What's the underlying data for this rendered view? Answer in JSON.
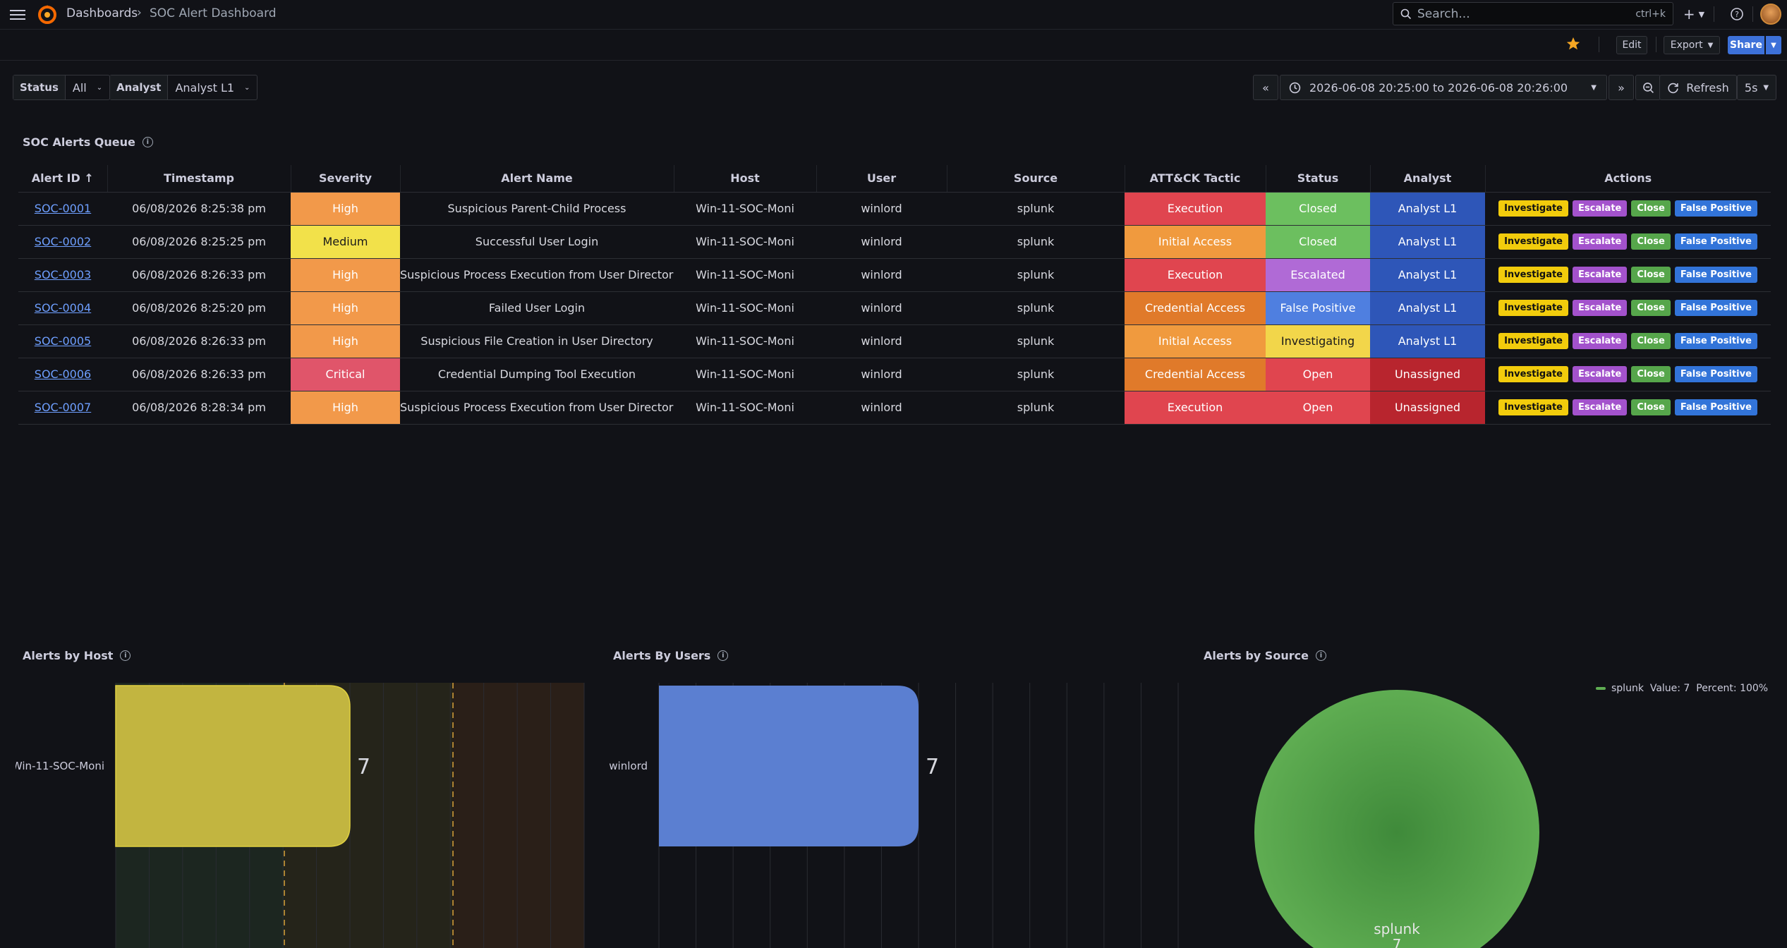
{
  "topbar": {
    "breadcrumb_root": "Dashboards",
    "breadcrumb_sep": "›",
    "breadcrumb_page": "SOC Alert Dashboard",
    "search_placeholder": "Search...",
    "search_shortcut": "ctrl+k",
    "add_label": "+"
  },
  "toolbar": {
    "edit": "Edit",
    "export": "Export",
    "share": "Share"
  },
  "variables": {
    "status_label": "Status",
    "status_value": "All",
    "analyst_label": "Analyst",
    "analyst_value": "Analyst L1"
  },
  "timepicker": {
    "range": "2026-06-08 20:25:00 to 2026-06-08 20:26:00",
    "refresh": "Refresh",
    "interval": "5s"
  },
  "queue": {
    "title": "SOC Alerts Queue",
    "columns": [
      "Alert ID ↑",
      "Timestamp",
      "Severity",
      "Alert Name",
      "Host",
      "User",
      "Source",
      "ATT&CK Tactic",
      "Status",
      "Analyst",
      "Actions"
    ],
    "actions": [
      "Investigate",
      "Escalate",
      "Close",
      "False Positive"
    ],
    "rows": [
      {
        "id": "SOC-0001",
        "ts": "06/08/2026 8:25:38 pm",
        "sev": "High",
        "name": "Suspicious Parent-Child Process",
        "host": "Win-11-SOC-Moni",
        "user": "winlord",
        "src": "splunk",
        "tactic": "Execution",
        "status": "Closed",
        "analyst": "Analyst L1"
      },
      {
        "id": "SOC-0002",
        "ts": "06/08/2026 8:25:25 pm",
        "sev": "Medium",
        "name": "Successful User Login",
        "host": "Win-11-SOC-Moni",
        "user": "winlord",
        "src": "splunk",
        "tactic": "Initial Access",
        "status": "Closed",
        "analyst": "Analyst L1"
      },
      {
        "id": "SOC-0003",
        "ts": "06/08/2026 8:26:33 pm",
        "sev": "High",
        "name": "Suspicious Process Execution from User Directory",
        "host": "Win-11-SOC-Moni",
        "user": "winlord",
        "src": "splunk",
        "tactic": "Execution",
        "status": "Escalated",
        "analyst": "Analyst L1"
      },
      {
        "id": "SOC-0004",
        "ts": "06/08/2026 8:25:20 pm",
        "sev": "High",
        "name": "Failed User Login",
        "host": "Win-11-SOC-Moni",
        "user": "winlord",
        "src": "splunk",
        "tactic": "Credential Access",
        "status": "False Positive",
        "analyst": "Analyst L1"
      },
      {
        "id": "SOC-0005",
        "ts": "06/08/2026 8:26:33 pm",
        "sev": "High",
        "name": "Suspicious File Creation in User Directory",
        "host": "Win-11-SOC-Moni",
        "user": "winlord",
        "src": "splunk",
        "tactic": "Initial Access",
        "status": "Investigating",
        "analyst": "Analyst L1"
      },
      {
        "id": "SOC-0006",
        "ts": "06/08/2026 8:26:33 pm",
        "sev": "Critical",
        "name": "Credential Dumping Tool Execution",
        "host": "Win-11-SOC-Moni",
        "user": "winlord",
        "src": "splunk",
        "tactic": "Credential Access",
        "status": "Open",
        "analyst": "Unassigned"
      },
      {
        "id": "SOC-0007",
        "ts": "06/08/2026 8:28:34 pm",
        "sev": "High",
        "name": "Suspicious Process Execution from User Directory",
        "host": "Win-11-SOC-Moni",
        "user": "winlord",
        "src": "splunk",
        "tactic": "Execution",
        "status": "Open",
        "analyst": "Unassigned"
      }
    ]
  },
  "colors": {
    "sev": {
      "High": "#f2994a",
      "Medium": "#f2e14a",
      "Critical": "#e0556a"
    },
    "tactic": {
      "Execution": "#e0454f",
      "Initial Access": "#f09a3e",
      "Credential Access": "#e07a2a"
    },
    "status": {
      "Closed": "#6cbf5f",
      "Escalated": "#b06ad6",
      "False Positive": "#4f7fe0",
      "Investigating": "#f2d64a",
      "Open": "#e0454f"
    },
    "analyst": {
      "Analyst L1": "#2e56b8",
      "Unassigned": "#b8252e"
    },
    "host_bar": "#c2b540",
    "user_bar": "#5b7fd1",
    "pie": "#5fad52"
  },
  "panels": {
    "host_title": "Alerts by Host",
    "users_title": "Alerts By Users",
    "source_title": "Alerts by Source"
  },
  "chart_data": [
    {
      "type": "bar",
      "categories": [
        "Win-11-SOC-Moni"
      ],
      "values": [
        7
      ],
      "title": "Alerts by Host"
    },
    {
      "type": "bar",
      "categories": [
        "winlord"
      ],
      "values": [
        7
      ],
      "title": "Alerts By Users"
    },
    {
      "type": "pie",
      "categories": [
        "splunk"
      ],
      "values": [
        7
      ],
      "title": "Alerts by Source",
      "legend": "splunk  Value: 7  Percent: 100%",
      "legend_position": "top-right",
      "slice_label": "splunk",
      "slice_value": "7"
    }
  ]
}
